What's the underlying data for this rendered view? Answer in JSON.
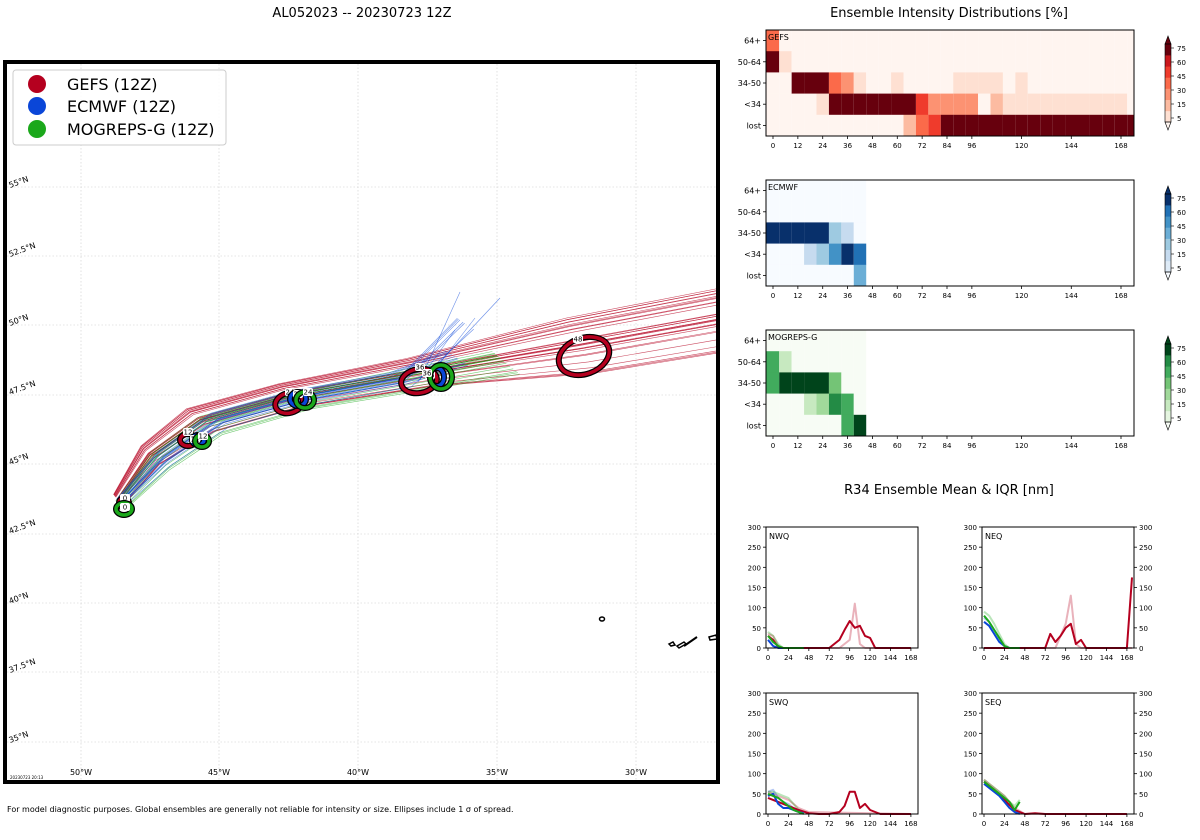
{
  "title": "AL052023 -- 20230723 12Z",
  "footer": "For model diagnostic purposes. Global ensembles are generally not reliable for intensity or size. Ellipses include 1 σ of spread.",
  "map": {
    "legend": [
      "GEFS (12Z)",
      "ECMWF (12Z)",
      "MOGREPS-G (12Z)"
    ],
    "lon_labels": [
      "50°W",
      "45°W",
      "40°W",
      "35°W",
      "30°W"
    ],
    "lat_labels": [
      "55°N",
      "52.5°N",
      "50°N",
      "47.5°N",
      "45°N",
      "42.5°N",
      "40°N",
      "37.5°N",
      "35°N"
    ],
    "stamp": "20230723 20:13",
    "hour_labels": [
      "0",
      "12",
      "24",
      "36",
      "48"
    ]
  },
  "colors": {
    "gefs": "#b5001f",
    "ecmwf": "#0a46d8",
    "mogreps": "#1ba81b"
  },
  "intensity": {
    "title": "Ensemble Intensity Distributions [%]",
    "panels": [
      "GEFS",
      "ECMWF",
      "MOGREPS-G"
    ],
    "y_labels": [
      "64+",
      "50-64",
      "34-50",
      "<34",
      "lost"
    ],
    "x_ticks": [
      "0",
      "12",
      "24",
      "36",
      "48",
      "60",
      "72",
      "84",
      "96",
      "120",
      "144",
      "168"
    ],
    "cbar_ticks": [
      "75",
      "60",
      "45",
      "30",
      "15",
      "5"
    ]
  },
  "r34": {
    "title": "R34 Ensemble Mean & IQR [nm]",
    "panels": [
      "NWQ",
      "NEQ",
      "SWQ",
      "SEQ"
    ],
    "y_ticks": [
      "300",
      "250",
      "200",
      "150",
      "100",
      "50",
      "0"
    ],
    "x_ticks": [
      "0",
      "24",
      "48",
      "72",
      "96",
      "120",
      "144",
      "168"
    ]
  },
  "chart_data": [
    {
      "type": "heatmap",
      "title": "GEFS",
      "x_hours": [
        0,
        6,
        12,
        18,
        24,
        30,
        36,
        42,
        48,
        54,
        60,
        66,
        72,
        78,
        84,
        90,
        96,
        102,
        108,
        114,
        120,
        126,
        132,
        138,
        144,
        150,
        156,
        162,
        168,
        174
      ],
      "rows": [
        "64+",
        "50-64",
        "34-50",
        "<34",
        "lost"
      ],
      "values_pct": [
        [
          45,
          3,
          3,
          3,
          3,
          3,
          3,
          3,
          3,
          3,
          3,
          3,
          3,
          3,
          3,
          3,
          3,
          3,
          3,
          3,
          3,
          3,
          3,
          3,
          3,
          3,
          3,
          3,
          3,
          3
        ],
        [
          85,
          10,
          3,
          3,
          3,
          3,
          3,
          3,
          3,
          3,
          3,
          3,
          3,
          3,
          3,
          3,
          3,
          3,
          3,
          3,
          3,
          3,
          3,
          3,
          3,
          3,
          3,
          3,
          3,
          3
        ],
        [
          3,
          3,
          95,
          95,
          95,
          45,
          30,
          12,
          3,
          3,
          12,
          3,
          3,
          3,
          3,
          12,
          12,
          12,
          12,
          3,
          12,
          3,
          3,
          3,
          3,
          3,
          3,
          3,
          3,
          3
        ],
        [
          3,
          3,
          3,
          3,
          12,
          85,
          95,
          95,
          95,
          95,
          95,
          85,
          60,
          30,
          30,
          30,
          30,
          3,
          20,
          12,
          12,
          12,
          12,
          12,
          12,
          12,
          12,
          12,
          12,
          3
        ],
        [
          3,
          3,
          3,
          3,
          3,
          3,
          3,
          3,
          3,
          3,
          3,
          20,
          40,
          60,
          80,
          80,
          80,
          80,
          92,
          92,
          92,
          92,
          92,
          92,
          92,
          92,
          92,
          92,
          92,
          92
        ]
      ]
    },
    {
      "type": "heatmap",
      "title": "ECMWF",
      "x_hours": [
        0,
        6,
        12,
        18,
        24,
        30,
        36,
        42
      ],
      "rows": [
        "64+",
        "50-64",
        "34-50",
        "<34",
        "lost"
      ],
      "values_pct": [
        [
          3,
          3,
          3,
          3,
          3,
          3,
          3,
          3
        ],
        [
          3,
          3,
          3,
          3,
          3,
          3,
          3,
          3
        ],
        [
          95,
          95,
          95,
          95,
          95,
          30,
          15,
          3
        ],
        [
          3,
          3,
          3,
          15,
          30,
          60,
          95,
          75
        ],
        [
          3,
          3,
          3,
          3,
          3,
          3,
          3,
          45
        ]
      ]
    },
    {
      "type": "heatmap",
      "title": "MOGREPS-G",
      "x_hours": [
        0,
        6,
        12,
        18,
        24,
        30,
        36,
        42
      ],
      "rows": [
        "64+",
        "50-64",
        "34-50",
        "<34",
        "lost"
      ],
      "values_pct": [
        [
          3,
          3,
          3,
          3,
          3,
          3,
          3,
          3
        ],
        [
          60,
          15,
          3,
          3,
          3,
          3,
          3,
          3
        ],
        [
          60,
          92,
          92,
          92,
          92,
          45,
          3,
          3
        ],
        [
          3,
          3,
          3,
          15,
          25,
          75,
          60,
          3
        ],
        [
          3,
          3,
          3,
          3,
          3,
          3,
          60,
          95
        ]
      ]
    },
    {
      "type": "line",
      "title": "NWQ",
      "ylim": [
        0,
        300
      ],
      "xlim": [
        0,
        174
      ],
      "series": [
        {
          "name": "GEFS mean",
          "x": [
            0,
            6,
            12,
            18,
            24,
            48,
            60,
            72,
            84,
            90,
            96,
            102,
            108,
            114,
            120,
            126,
            132,
            168
          ],
          "y": [
            30,
            20,
            2,
            0,
            0,
            0,
            0,
            0,
            20,
            45,
            67,
            50,
            55,
            30,
            25,
            0,
            0,
            0
          ]
        },
        {
          "name": "GEFS IQR",
          "x": [
            0,
            6,
            12,
            18,
            24,
            48,
            84,
            96,
            102,
            108,
            114,
            168
          ],
          "y": [
            35,
            30,
            5,
            0,
            0,
            0,
            0,
            20,
            110,
            10,
            0,
            0
          ]
        },
        {
          "name": "ECMWF mean",
          "x": [
            0,
            6,
            12,
            18,
            24,
            36,
            42
          ],
          "y": [
            20,
            5,
            0,
            0,
            0,
            0,
            0
          ]
        },
        {
          "name": "MOGREPS-G mean",
          "x": [
            0,
            6,
            12,
            18,
            24,
            36,
            42
          ],
          "y": [
            30,
            15,
            5,
            0,
            0,
            0,
            0
          ]
        },
        {
          "name": "MOGREPS-G IQR",
          "x": [
            0,
            6,
            12,
            18,
            24,
            36,
            42
          ],
          "y": [
            40,
            30,
            10,
            0,
            0,
            0,
            0
          ]
        }
      ]
    },
    {
      "type": "line",
      "title": "NEQ",
      "ylim": [
        0,
        300
      ],
      "xlim": [
        0,
        174
      ],
      "series": [
        {
          "name": "GEFS mean",
          "x": [
            0,
            24,
            48,
            60,
            72,
            78,
            84,
            90,
            96,
            102,
            108,
            114,
            120,
            132,
            160,
            168,
            174
          ],
          "y": [
            0,
            0,
            0,
            0,
            0,
            35,
            15,
            30,
            50,
            60,
            10,
            20,
            0,
            0,
            0,
            0,
            175
          ]
        },
        {
          "name": "GEFS IQR",
          "x": [
            0,
            72,
            84,
            96,
            102,
            108,
            114,
            174
          ],
          "y": [
            0,
            0,
            0,
            60,
            130,
            10,
            0,
            0
          ]
        },
        {
          "name": "ECMWF mean",
          "x": [
            0,
            6,
            12,
            18,
            24,
            30,
            36,
            42
          ],
          "y": [
            65,
            55,
            35,
            15,
            5,
            0,
            0,
            0
          ]
        },
        {
          "name": "ECMWF IQR",
          "x": [
            0,
            6,
            12,
            18,
            24,
            30,
            36,
            42
          ],
          "y": [
            75,
            65,
            45,
            25,
            5,
            0,
            0,
            0
          ]
        },
        {
          "name": "MOGREPS-G mean",
          "x": [
            0,
            6,
            12,
            18,
            24,
            30,
            36,
            42
          ],
          "y": [
            80,
            65,
            45,
            25,
            5,
            0,
            0,
            0
          ]
        },
        {
          "name": "MOGREPS-G IQR",
          "x": [
            0,
            6,
            12,
            18,
            24,
            30,
            36,
            42
          ],
          "y": [
            90,
            80,
            60,
            35,
            10,
            0,
            0,
            0
          ]
        }
      ]
    },
    {
      "type": "line",
      "title": "SWQ",
      "ylim": [
        0,
        300
      ],
      "xlim": [
        0,
        174
      ],
      "series": [
        {
          "name": "GEFS mean",
          "x": [
            0,
            12,
            24,
            36,
            48,
            60,
            72,
            84,
            90,
            96,
            102,
            108,
            114,
            120,
            132,
            168
          ],
          "y": [
            40,
            30,
            20,
            10,
            2,
            0,
            0,
            5,
            20,
            55,
            55,
            15,
            25,
            10,
            0,
            0
          ]
        },
        {
          "name": "GEFS IQR",
          "x": [
            0,
            12,
            24,
            36,
            48,
            168
          ],
          "y": [
            55,
            45,
            35,
            15,
            5,
            0
          ]
        },
        {
          "name": "ECMWF mean",
          "x": [
            0,
            6,
            12,
            18,
            24,
            30,
            36,
            42
          ],
          "y": [
            45,
            50,
            25,
            15,
            15,
            10,
            5,
            2
          ]
        },
        {
          "name": "ECMWF IQR",
          "x": [
            0,
            6,
            12,
            18,
            24,
            30,
            36,
            42
          ],
          "y": [
            55,
            60,
            40,
            30,
            25,
            15,
            10,
            5
          ]
        },
        {
          "name": "MOGREPS-G mean",
          "x": [
            0,
            6,
            12,
            18,
            24,
            30,
            36,
            42
          ],
          "y": [
            50,
            45,
            40,
            30,
            20,
            10,
            5,
            0
          ]
        },
        {
          "name": "MOGREPS-G IQR",
          "x": [
            0,
            6,
            12,
            18,
            24,
            30,
            36,
            42
          ],
          "y": [
            55,
            55,
            50,
            45,
            40,
            25,
            10,
            0
          ]
        }
      ]
    },
    {
      "type": "line",
      "title": "SEQ",
      "ylim": [
        0,
        300
      ],
      "xlim": [
        0,
        174
      ],
      "series": [
        {
          "name": "GEFS mean",
          "x": [
            0,
            12,
            24,
            36,
            48,
            60,
            72,
            96,
            168
          ],
          "y": [
            80,
            60,
            35,
            10,
            0,
            2,
            0,
            0,
            0
          ]
        },
        {
          "name": "GEFS IQR",
          "x": [
            0,
            12,
            24,
            36,
            48,
            168
          ],
          "y": [
            85,
            65,
            45,
            15,
            0,
            0
          ]
        },
        {
          "name": "ECMWF mean",
          "x": [
            0,
            6,
            12,
            18,
            24,
            30,
            36,
            42
          ],
          "y": [
            75,
            65,
            55,
            45,
            30,
            15,
            5,
            0
          ]
        },
        {
          "name": "MOGREPS-G mean",
          "x": [
            0,
            6,
            12,
            18,
            24,
            30,
            36,
            42
          ],
          "y": [
            80,
            70,
            60,
            50,
            40,
            30,
            10,
            30
          ]
        },
        {
          "name": "MOGREPS-G IQR",
          "x": [
            0,
            6,
            12,
            18,
            24,
            30,
            36,
            42
          ],
          "y": [
            85,
            75,
            65,
            55,
            45,
            30,
            20,
            35
          ]
        }
      ]
    }
  ]
}
